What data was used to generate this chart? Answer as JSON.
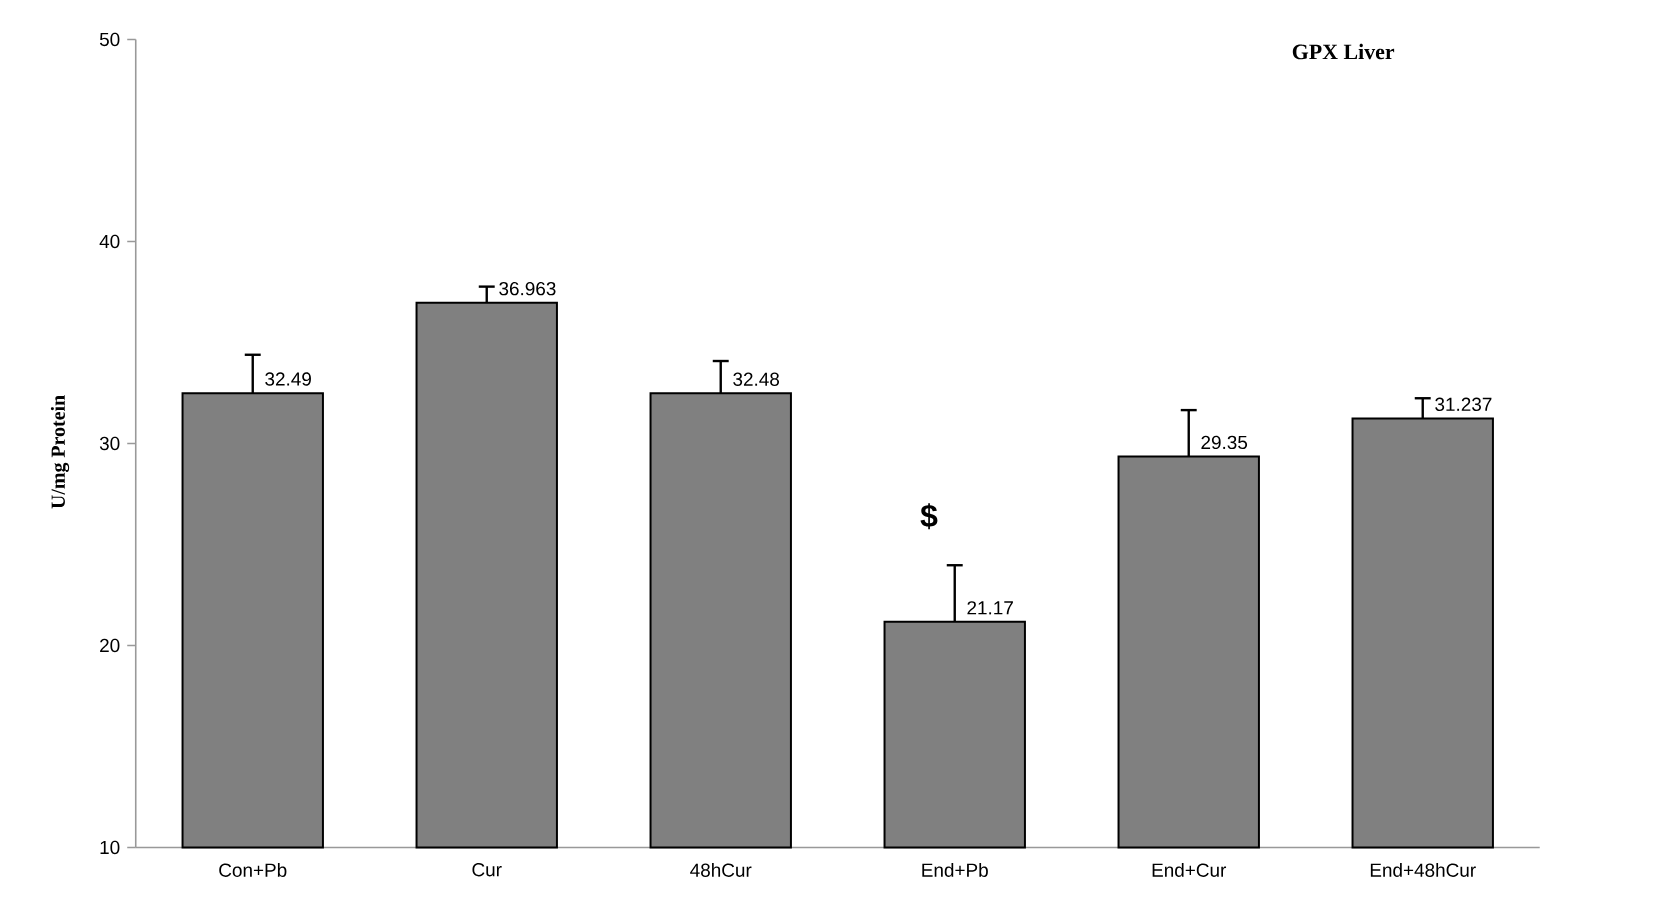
{
  "chart_data": {
    "type": "bar",
    "title": "GPX Liver",
    "ylabel": "U/mg Protein",
    "categories": [
      "Con+Pb",
      "Cur",
      "48hCur",
      "End+Pb",
      "End+Cur",
      "End+48hCur"
    ],
    "values": [
      32.49,
      36.963,
      32.48,
      21.17,
      29.35,
      31.237
    ],
    "errors": [
      1.9,
      0.8,
      1.6,
      2.8,
      2.3,
      1.0
    ],
    "color": "#808080",
    "ylim": [
      10,
      50
    ],
    "yticks": [
      10,
      20,
      30,
      40,
      50
    ],
    "data_labels": true,
    "grid": false,
    "annotations": [
      "$"
    ]
  }
}
